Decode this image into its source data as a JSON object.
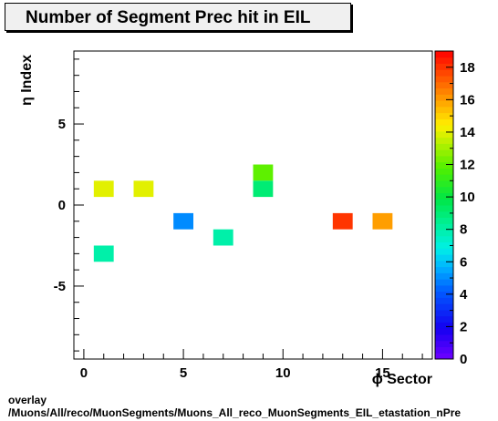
{
  "title": "Number of Segment Prec hit in EIL",
  "xlabel": "ϕ Sector",
  "ylabel": "η Index",
  "footer": {
    "line1": "overlay",
    "line2": "/Muons/All/reco/MuonSegments/Muons_All_reco_MuonSegments_EIL_etastation_nPre"
  },
  "chart_data": {
    "type": "heatmap",
    "title": "Number of Segment Prec hit in EIL",
    "xlabel": "ϕ Sector",
    "ylabel": "η Index",
    "xlim": [
      -0.5,
      17.5
    ],
    "ylim": [
      -9.5,
      9.5
    ],
    "zlim": [
      0,
      19
    ],
    "x_ticks": [
      0,
      5,
      10,
      15
    ],
    "y_ticks": [
      -5,
      0,
      5
    ],
    "z_ticks": [
      0,
      2,
      4,
      6,
      8,
      10,
      12,
      14,
      16,
      18
    ],
    "cells": [
      {
        "x": 1,
        "y": 1,
        "value": 14
      },
      {
        "x": 3,
        "y": 1,
        "value": 14
      },
      {
        "x": 9,
        "y": 2,
        "value": 12
      },
      {
        "x": 9,
        "y": 1,
        "value": 9
      },
      {
        "x": 5,
        "y": -1,
        "value": 5
      },
      {
        "x": 7,
        "y": -2,
        "value": 8
      },
      {
        "x": 13,
        "y": -1,
        "value": 18
      },
      {
        "x": 15,
        "y": -1,
        "value": 16
      },
      {
        "x": 1,
        "y": -3,
        "value": 8
      }
    ],
    "grid": false,
    "legend": "color bar right"
  }
}
